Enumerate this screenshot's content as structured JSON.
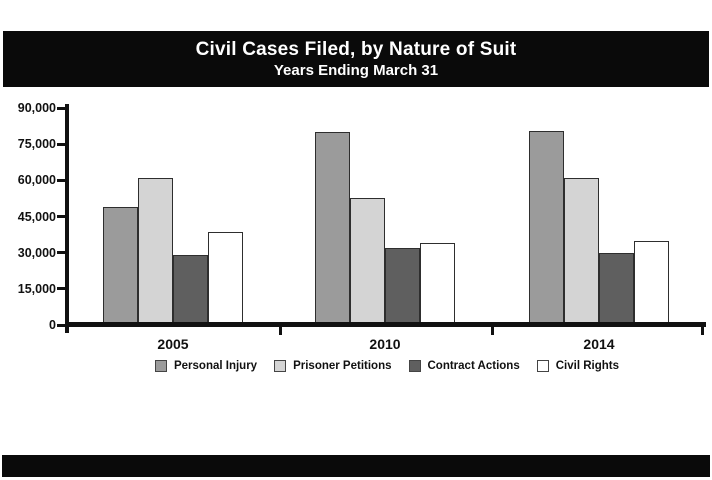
{
  "title_bar": {
    "line1": "Civil Cases Filed, by Nature of Suit",
    "line2": "Years Ending March 31"
  },
  "chart_data": {
    "type": "bar",
    "title": "Civil Cases Filed, by Nature of Suit",
    "subtitle": "Years Ending March 31",
    "categories": [
      "2005",
      "2010",
      "2014"
    ],
    "series": [
      {
        "name": "Personal Injury",
        "color": "#9b9b9b",
        "values": [
          49000,
          80000,
          80500
        ]
      },
      {
        "name": "Prisoner Petitions",
        "color": "#d4d4d4",
        "values": [
          61000,
          52500,
          61000
        ]
      },
      {
        "name": "Contract Actions",
        "color": "#5f5f5f",
        "values": [
          29000,
          32000,
          30000
        ]
      },
      {
        "name": "Civil Rights",
        "color": "#ffffff",
        "values": [
          38500,
          34000,
          35000
        ]
      }
    ],
    "ylim": [
      0,
      90000
    ],
    "ytick_step": 15000,
    "ytick_labels": [
      "0",
      "15,000",
      "30,000",
      "45,000",
      "60,000",
      "75,000",
      "90,000"
    ],
    "xlabel": "",
    "ylabel": "",
    "grid": false,
    "legend_position": "bottom"
  },
  "colors": {
    "background": "#ffffff",
    "title_bar": "#0a0a0a",
    "title_text": "#ffffff",
    "axis": "#111111",
    "bar_border": "#2e2e2e"
  }
}
